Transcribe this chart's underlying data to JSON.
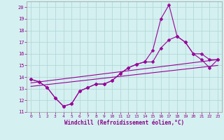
{
  "xlabel": "Windchill (Refroidissement éolien,°C)",
  "bg_color": "#d4f0f0",
  "grid_color": "#aed4d4",
  "line_color": "#990099",
  "xlim": [
    -0.5,
    23.5
  ],
  "ylim": [
    11,
    20.5
  ],
  "yticks": [
    11,
    12,
    13,
    14,
    15,
    16,
    17,
    18,
    19,
    20
  ],
  "xticks": [
    0,
    1,
    2,
    3,
    4,
    5,
    6,
    7,
    8,
    9,
    10,
    11,
    12,
    13,
    14,
    15,
    16,
    17,
    18,
    19,
    20,
    21,
    22,
    23
  ],
  "line_spike_x": [
    0,
    1,
    2,
    3,
    4,
    5,
    6,
    7,
    8,
    9,
    10,
    11,
    12,
    13,
    14,
    15,
    16,
    17,
    18,
    19,
    20,
    21,
    22,
    23
  ],
  "line_spike_y": [
    13.8,
    13.6,
    13.1,
    12.2,
    11.5,
    11.7,
    12.8,
    13.1,
    13.4,
    13.4,
    13.7,
    14.3,
    14.8,
    15.1,
    15.3,
    16.3,
    19.0,
    20.2,
    17.5,
    17.0,
    16.0,
    15.5,
    14.8,
    15.5
  ],
  "line_smooth_x": [
    0,
    1,
    2,
    3,
    4,
    5,
    6,
    7,
    8,
    9,
    10,
    11,
    12,
    13,
    14,
    15,
    16,
    17,
    18,
    19,
    20,
    21,
    22,
    23
  ],
  "line_smooth_y": [
    13.8,
    13.6,
    13.1,
    12.2,
    11.5,
    11.7,
    12.8,
    13.1,
    13.4,
    13.4,
    13.7,
    14.3,
    14.8,
    15.1,
    15.3,
    15.3,
    16.5,
    17.2,
    17.5,
    17.0,
    16.0,
    16.0,
    15.5,
    15.5
  ],
  "trend1_x": [
    0,
    23
  ],
  "trend1_y": [
    13.5,
    15.5
  ],
  "trend2_x": [
    0,
    23
  ],
  "trend2_y": [
    13.2,
    15.0
  ]
}
